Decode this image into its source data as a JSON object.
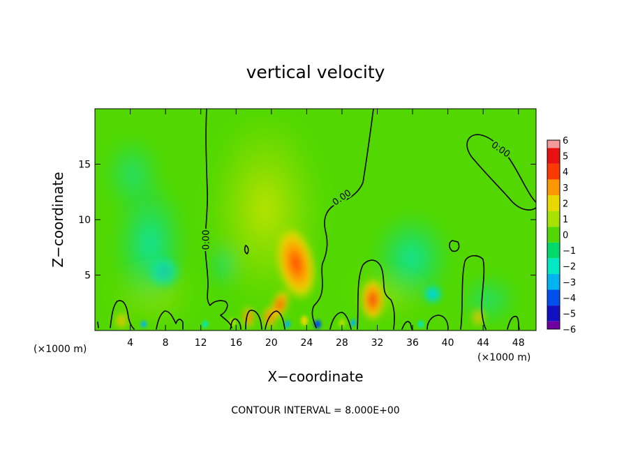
{
  "chart_data": {
    "type": "heatmap",
    "title": "vertical velocity",
    "xlabel": "X−coordinate",
    "ylabel": "Z−coordinate",
    "x_unit_left": "(×1000 m)",
    "x_unit_right": "(×1000 m)",
    "xlim": [
      0,
      50
    ],
    "ylim": [
      0,
      20
    ],
    "x_ticks": [
      4,
      8,
      12,
      16,
      20,
      24,
      28,
      32,
      36,
      40,
      44,
      48
    ],
    "y_ticks": [
      5,
      10,
      15
    ],
    "contour_interval_text": "CONTOUR INTERVAL = 8.000E+00",
    "contour_labels": [
      "0.00",
      "0.00",
      "0.00"
    ],
    "colorbar": {
      "labels": [
        "6",
        "5",
        "4",
        "3",
        "2",
        "1",
        "0",
        "−1",
        "−2",
        "−3",
        "−4",
        "−5",
        "−6"
      ],
      "colors": [
        "#f59a9a",
        "#e81010",
        "#ff3a00",
        "#ff9800",
        "#e8d800",
        "#a8e000",
        "#52d800",
        "#00d86a",
        "#00e8c4",
        "#00b4f0",
        "#0050f0",
        "#1010c0",
        "#7000a0"
      ]
    },
    "background_value": 0,
    "features": [
      {
        "kind": "updraft",
        "x": 22.8,
        "z": 6.0,
        "value": 4
      },
      {
        "kind": "updraft",
        "x": 31.2,
        "z": 2.6,
        "value": 4
      },
      {
        "kind": "updraft",
        "x": 21.2,
        "z": 2.0,
        "value": 3
      },
      {
        "kind": "updraft",
        "x": 20.0,
        "z": 1.2,
        "value": 3
      },
      {
        "kind": "updraft",
        "x": 17.5,
        "z": 1.0,
        "value": 3
      },
      {
        "kind": "updraft",
        "x": 3.0,
        "z": 0.8,
        "value": 2
      },
      {
        "kind": "updraft",
        "x": 42.5,
        "z": 1.5,
        "value": 1
      },
      {
        "kind": "downdraft",
        "x": 6.5,
        "z": 6.5,
        "value": -1
      },
      {
        "kind": "downdraft",
        "x": 35.0,
        "z": 5.0,
        "value": -1
      },
      {
        "kind": "downdraft",
        "x": 38.5,
        "z": 3.0,
        "value": -2
      },
      {
        "kind": "downdraft",
        "x": 25.7,
        "z": 0.3,
        "value": -3
      },
      {
        "kind": "downdraft",
        "x": 29.5,
        "z": 0.3,
        "value": -2
      }
    ]
  }
}
